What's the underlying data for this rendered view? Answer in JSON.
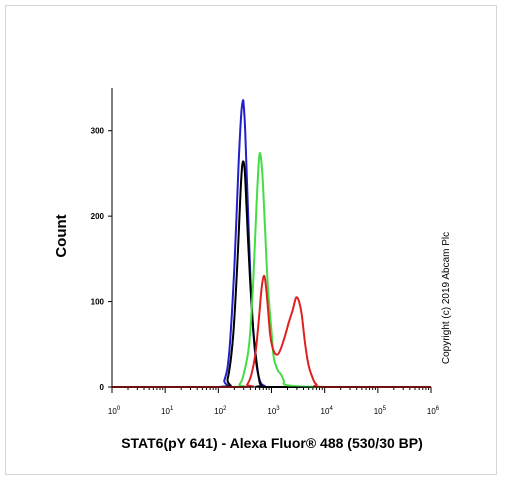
{
  "chart_data": {
    "type": "line",
    "title": "",
    "xlabel": "STAT6(pY 641) - Alexa Fluor® 488 (530/30 BP)",
    "ylabel": "Count",
    "xscale": "log",
    "xlim": [
      1,
      1000000
    ],
    "ylim": [
      0,
      350
    ],
    "xtick_bases": [
      "10",
      "10",
      "10",
      "10",
      "10",
      "10",
      "10"
    ],
    "xtick_exps": [
      "0",
      "1",
      "2",
      "3",
      "4",
      "5",
      "6"
    ],
    "xtick_values": [
      1,
      10,
      100,
      1000,
      10000,
      100000,
      1000000
    ],
    "yticks": [
      0,
      100,
      200,
      300
    ],
    "ytick_labels": [
      "0",
      "100",
      "200",
      "300"
    ],
    "grid": false,
    "legend": "none",
    "annotation": "Copyright (c) 2019 Abcam Plc",
    "series": [
      {
        "color": "#2020c8",
        "x": [
          1,
          100,
          130,
          160,
          200,
          240,
          270,
          290,
          300,
          320,
          360,
          420,
          500,
          600,
          750,
          1000,
          10000,
          1000000
        ],
        "y": [
          0,
          0,
          8,
          40,
          140,
          260,
          320,
          335,
          330,
          300,
          210,
          100,
          35,
          8,
          1,
          0,
          0,
          0
        ]
      },
      {
        "color": "#000000",
        "x": [
          1,
          110,
          150,
          190,
          230,
          260,
          280,
          300,
          320,
          360,
          400,
          450,
          500,
          580,
          650,
          1000,
          1000000
        ],
        "y": [
          0,
          0,
          10,
          60,
          150,
          225,
          258,
          263,
          245,
          175,
          120,
          70,
          40,
          10,
          2,
          0,
          0
        ]
      },
      {
        "color": "#44dd44",
        "x": [
          1,
          200,
          250,
          300,
          380,
          450,
          520,
          580,
          620,
          680,
          750,
          850,
          1000,
          1100,
          1300,
          1500,
          1700,
          2000,
          10000,
          1000000
        ],
        "y": [
          0,
          0,
          3,
          15,
          50,
          120,
          210,
          265,
          272,
          245,
          190,
          120,
          65,
          35,
          20,
          15,
          8,
          2,
          0,
          0
        ]
      },
      {
        "color": "#e02020",
        "x": [
          1,
          280,
          350,
          420,
          500,
          580,
          650,
          720,
          780,
          850,
          950,
          1100,
          1300,
          1500,
          1800,
          2100,
          2500,
          2800,
          3000,
          3300,
          3700,
          4300,
          5000,
          6000,
          7000,
          10000,
          1000000
        ],
        "y": [
          0,
          0,
          3,
          15,
          40,
          80,
          115,
          130,
          120,
          95,
          60,
          42,
          38,
          45,
          60,
          75,
          90,
          102,
          105,
          100,
          85,
          50,
          25,
          10,
          3,
          0,
          0
        ]
      }
    ]
  }
}
